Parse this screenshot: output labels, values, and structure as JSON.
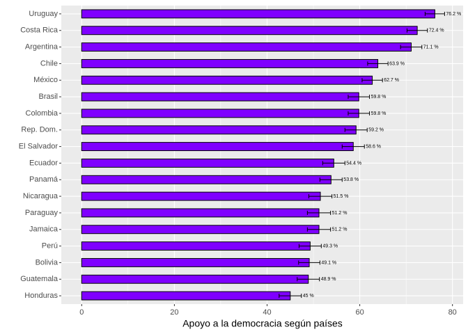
{
  "chart_data": {
    "type": "barh",
    "categories": [
      "Uruguay",
      "Costa Rica",
      "Argentina",
      "Chile",
      "México",
      "Brasil",
      "Colombia",
      "Rep. Dom.",
      "El Salvador",
      "Ecuador",
      "Panamá",
      "Nicaragua",
      "Paraguay",
      "Jamaica",
      "Perú",
      "Bolivia",
      "Guatemala",
      "Honduras"
    ],
    "values": [
      76.2,
      72.4,
      71.1,
      63.9,
      62.7,
      59.8,
      59.8,
      59.2,
      58.6,
      54.4,
      53.8,
      51.5,
      51.2,
      51.2,
      49.3,
      49.1,
      48.9,
      45
    ],
    "value_labels": [
      "76.2 %",
      "72.4 %",
      "71.1 %",
      "63.9 %",
      "62.7 %",
      "59.8 %",
      "59.8 %",
      "59.2 %",
      "58.6 %",
      "54.4 %",
      "53.8 %",
      "51.5 %",
      "51.2 %",
      "51.2 %",
      "49.3 %",
      "49.1 %",
      "48.9 %",
      "45 %"
    ],
    "errors": [
      2.1,
      2.2,
      2.3,
      2.2,
      2.2,
      2.3,
      2.3,
      2.4,
      2.4,
      2.4,
      2.4,
      2.5,
      2.5,
      2.5,
      2.4,
      2.3,
      2.4,
      2.4
    ],
    "color": "#7f00ff",
    "xlabel": "Apoyo a la democracia según países",
    "xlim": [
      -4.4,
      82.3
    ],
    "xticks": [
      0,
      20,
      40,
      60,
      80
    ],
    "xminor": [
      10,
      30,
      50,
      70
    ],
    "grid": true
  }
}
